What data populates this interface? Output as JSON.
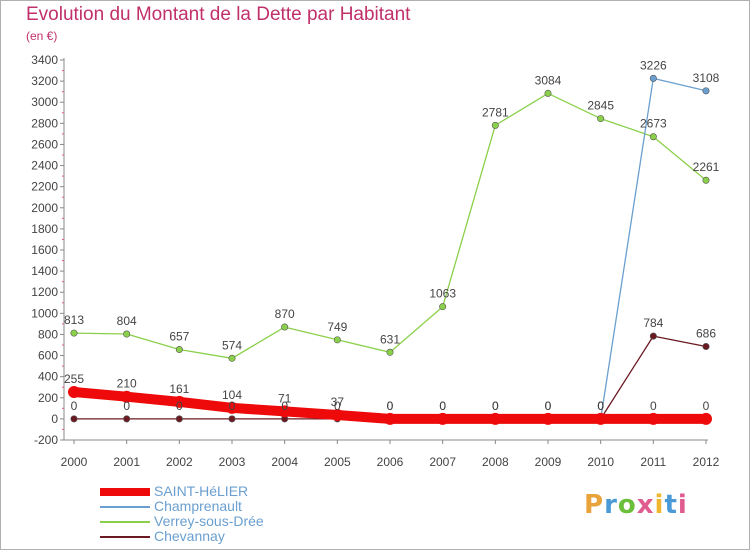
{
  "title": "Evolution du Montant de la Dette par Habitant",
  "subtitle": "(en €)",
  "logo": {
    "text": "Proxiti",
    "colors": [
      "#e8a33a",
      "#4a9ad8",
      "#6bbf3a",
      "#e05b8f",
      "#f0b630",
      "#4a9ad8",
      "#e05b8f"
    ]
  },
  "chart_data": {
    "type": "line",
    "title": "Evolution du Montant de la Dette par Habitant",
    "subtitle": "(en €)",
    "xlabel": "",
    "ylabel": "",
    "ylim": [
      -200,
      3400
    ],
    "yticks": [
      -200,
      0,
      200,
      400,
      600,
      800,
      1000,
      1200,
      1400,
      1600,
      1800,
      2000,
      2200,
      2400,
      2600,
      2800,
      3000,
      3200,
      3400
    ],
    "categories": [
      "2000",
      "2001",
      "2002",
      "2003",
      "2004",
      "2005",
      "2006",
      "2007",
      "2008",
      "2009",
      "2010",
      "2011",
      "2012"
    ],
    "grid": false,
    "legend_placement": "bottom-left",
    "series": [
      {
        "name": "Chevannay",
        "color": "#6b1a22",
        "values": [
          0,
          0,
          0,
          0,
          0,
          0,
          0,
          0,
          0,
          0,
          0,
          784,
          686
        ],
        "labels": [
          "0",
          "0",
          "0",
          "0",
          "0",
          "0",
          "0",
          "0",
          "0",
          "0",
          "0",
          "784",
          "686"
        ],
        "bold": false
      },
      {
        "name": "Verrey-sous-Drée",
        "color": "#8bd04a",
        "values": [
          813,
          804,
          657,
          574,
          870,
          749,
          631,
          1063,
          2781,
          3084,
          2845,
          2673,
          2261
        ],
        "labels": [
          "813",
          "804",
          "657",
          "574",
          "870",
          "749",
          "631",
          "1063",
          "2781",
          "3084",
          "2845",
          "2673",
          "2261"
        ],
        "bold": false
      },
      {
        "name": "Champrenault",
        "color": "#6a9fd0",
        "values": [
          null,
          null,
          null,
          null,
          null,
          null,
          null,
          null,
          null,
          null,
          0,
          3226,
          3108
        ],
        "labels": [
          "",
          "",
          "",
          "",
          "",
          "",
          "",
          "",
          "",
          "",
          "0",
          "3226",
          "3108"
        ],
        "bold": false
      },
      {
        "name": "SAINT-HéLIER",
        "color": "#ee0a0a",
        "values": [
          255,
          210,
          161,
          104,
          71,
          37,
          0,
          0,
          0,
          0,
          0,
          0,
          0
        ],
        "labels": [
          "255",
          "210",
          "161",
          "104",
          "71",
          "37",
          "0",
          "0",
          "0",
          "0",
          "0",
          "0",
          "0"
        ],
        "bold": true
      }
    ],
    "legend": [
      "SAINT-HéLIER",
      "Champrenault",
      "Verrey-sous-Drée",
      "Chevannay"
    ]
  }
}
